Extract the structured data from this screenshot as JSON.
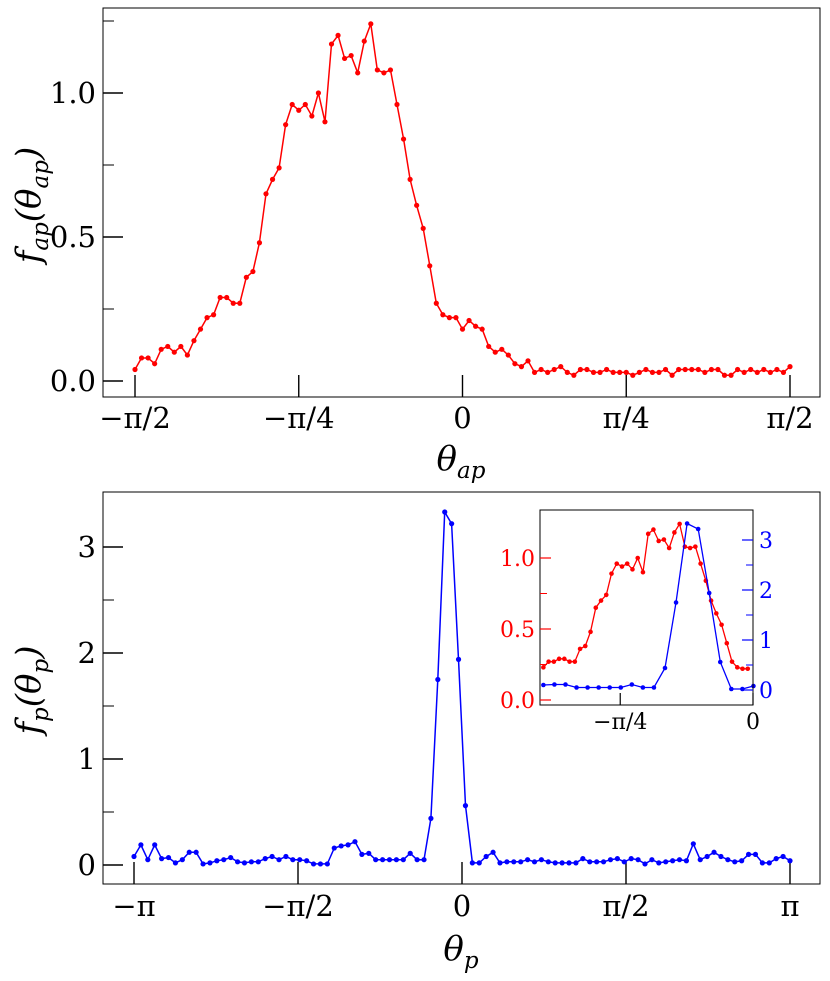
{
  "chart_data": [
    {
      "type": "line",
      "xlabel": "θ_ap",
      "ylabel": "f_ap(θ_ap)",
      "xlim": [
        -1.5708,
        1.5708
      ],
      "ylim": [
        -0.05,
        1.3
      ],
      "x_tick_labels": [
        "−π/2",
        "−π/4",
        "0",
        "π/4",
        "π/2"
      ],
      "y_tick_labels": [
        "0.0",
        "0.5",
        "1.0"
      ],
      "color": "#ff0000",
      "x_unit": "rad",
      "values": [
        0.04,
        0.08,
        0.08,
        0.06,
        0.11,
        0.12,
        0.1,
        0.12,
        0.09,
        0.14,
        0.18,
        0.22,
        0.23,
        0.29,
        0.29,
        0.27,
        0.27,
        0.36,
        0.38,
        0.48,
        0.65,
        0.7,
        0.74,
        0.89,
        0.96,
        0.94,
        0.96,
        0.92,
        1.0,
        0.9,
        1.17,
        1.2,
        1.12,
        1.13,
        1.07,
        1.18,
        1.24,
        1.08,
        1.07,
        1.08,
        0.96,
        0.84,
        0.7,
        0.61,
        0.53,
        0.4,
        0.27,
        0.23,
        0.22,
        0.22,
        0.18,
        0.21,
        0.19,
        0.18,
        0.12,
        0.1,
        0.11,
        0.09,
        0.06,
        0.05,
        0.07,
        0.03,
        0.04,
        0.03,
        0.04,
        0.05,
        0.03,
        0.02,
        0.04,
        0.04,
        0.03,
        0.03,
        0.04,
        0.03,
        0.03,
        0.03,
        0.02,
        0.03,
        0.04,
        0.03,
        0.03,
        0.04,
        0.02,
        0.04,
        0.04,
        0.04,
        0.04,
        0.03,
        0.04,
        0.04,
        0.02,
        0.02,
        0.04,
        0.03,
        0.04,
        0.03,
        0.04,
        0.03,
        0.04,
        0.03,
        0.05
      ]
    },
    {
      "type": "line",
      "xlabel": "θ_p",
      "ylabel": "f_p(θ_p)",
      "xlim": [
        -3.1416,
        3.1416
      ],
      "ylim": [
        -0.15,
        3.5
      ],
      "x_tick_labels": [
        "−π",
        "−π/2",
        "0",
        "π/2",
        "π"
      ],
      "y_tick_labels": [
        "0",
        "1",
        "2",
        "3"
      ],
      "color": "#0000ff",
      "x_unit": "rad",
      "values": [
        0.08,
        0.19,
        0.05,
        0.19,
        0.06,
        0.07,
        0.02,
        0.05,
        0.12,
        0.12,
        0.01,
        0.02,
        0.04,
        0.05,
        0.07,
        0.03,
        0.02,
        0.03,
        0.03,
        0.06,
        0.08,
        0.05,
        0.08,
        0.05,
        0.05,
        0.04,
        0.01,
        0.01,
        0.01,
        0.16,
        0.18,
        0.19,
        0.22,
        0.1,
        0.11,
        0.05,
        0.05,
        0.05,
        0.05,
        0.05,
        0.11,
        0.05,
        0.05,
        0.44,
        1.75,
        3.33,
        3.22,
        1.94,
        0.56,
        0.02,
        0.02,
        0.08,
        0.12,
        0.02,
        0.03,
        0.03,
        0.03,
        0.05,
        0.03,
        0.05,
        0.03,
        0.02,
        0.02,
        0.02,
        0.02,
        0.06,
        0.03,
        0.03,
        0.03,
        0.05,
        0.06,
        0.03,
        0.06,
        0.05,
        0.01,
        0.05,
        0.02,
        0.03,
        0.04,
        0.05,
        0.04,
        0.2,
        0.05,
        0.08,
        0.12,
        0.08,
        0.05,
        0.03,
        0.04,
        0.1,
        0.1,
        0.02,
        0.02,
        0.06,
        0.08,
        0.04
      ]
    },
    {
      "type": "line",
      "placement": "inset top-right of lower panel",
      "xlim": [
        -1.26,
        0.0
      ],
      "x_tick_labels": [
        "−π/4",
        "0"
      ],
      "left_axis": {
        "ylim": [
          -0.03,
          1.25
        ],
        "tick_labels": [
          "0.0",
          "0.5",
          "1.0"
        ],
        "color": "#ff0000"
      },
      "right_axis": {
        "ylim": [
          -0.05,
          3.45
        ],
        "tick_labels": [
          "0",
          "1",
          "2",
          "3"
        ],
        "color": "#0000ff"
      },
      "series": [
        {
          "axis": "left",
          "color": "#ff0000",
          "x_start": -1.24,
          "x_step": 0.031,
          "values": [
            0.23,
            0.27,
            0.27,
            0.29,
            0.29,
            0.27,
            0.27,
            0.36,
            0.38,
            0.48,
            0.65,
            0.7,
            0.74,
            0.89,
            0.96,
            0.94,
            0.96,
            0.92,
            1.0,
            0.9,
            1.17,
            1.2,
            1.12,
            1.13,
            1.07,
            1.18,
            1.24,
            1.08,
            1.07,
            1.08,
            0.96,
            0.84,
            0.7,
            0.61,
            0.53,
            0.4,
            0.27,
            0.23,
            0.22,
            0.22
          ]
        },
        {
          "axis": "right",
          "color": "#0000ff",
          "x_start": -1.24,
          "x_step": 0.0654,
          "values": [
            0.1,
            0.11,
            0.11,
            0.05,
            0.05,
            0.05,
            0.05,
            0.05,
            0.11,
            0.05,
            0.05,
            0.44,
            1.75,
            3.33,
            3.22,
            1.94,
            0.56,
            0.02,
            0.02,
            0.08
          ]
        }
      ]
    }
  ]
}
